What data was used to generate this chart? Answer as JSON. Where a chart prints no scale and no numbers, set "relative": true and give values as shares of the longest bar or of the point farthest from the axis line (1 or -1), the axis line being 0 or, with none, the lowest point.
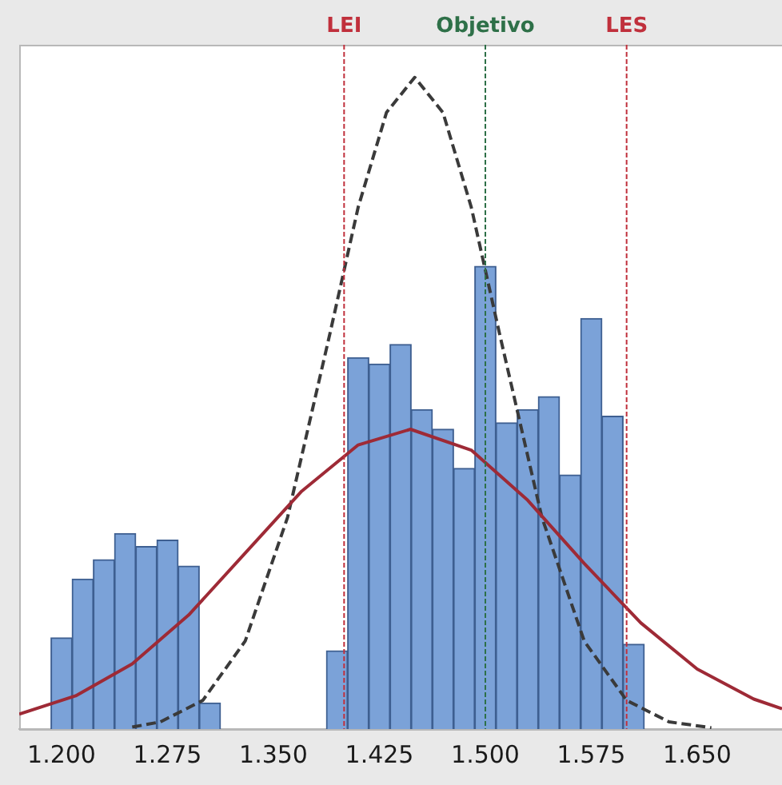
{
  "chart_data": {
    "type": "histogram",
    "relative": true,
    "color": "#7ba2d8",
    "bins": [
      1.1925,
      1.2075,
      1.2225,
      1.2375,
      1.2525,
      1.2675,
      1.2825,
      1.2975,
      1.3125,
      1.3275,
      1.3425,
      1.3575,
      1.3725,
      1.3875,
      1.4025,
      1.4175,
      1.4325,
      1.4475,
      1.4625,
      1.4775,
      1.4925,
      1.5075,
      1.5225,
      1.5375,
      1.5525,
      1.5675,
      1.5825,
      1.5975,
      1.6125
    ],
    "values": [
      0.14,
      0.23,
      0.26,
      0.3,
      0.28,
      0.29,
      0.25,
      0.04,
      0,
      0,
      0,
      0,
      0,
      0.12,
      0.57,
      0.56,
      0.59,
      0.49,
      0.46,
      0.4,
      0.71,
      0.47,
      0.49,
      0.51,
      0.39,
      0.63,
      0.48,
      0.13
    ],
    "series": [
      {
        "type": "line",
        "color": "#9e2a36",
        "line_style": "solid",
        "x": [
          1.17,
          1.21,
          1.25,
          1.29,
          1.33,
          1.37,
          1.41,
          1.447,
          1.49,
          1.53,
          1.57,
          1.61,
          1.65,
          1.69,
          1.71
        ],
        "values": [
          0.023,
          0.051,
          0.1,
          0.175,
          0.27,
          0.365,
          0.436,
          0.46,
          0.428,
          0.351,
          0.254,
          0.163,
          0.092,
          0.046,
          0.031
        ]
      },
      {
        "type": "line",
        "color": "#3a3a3a",
        "line_style": "dashed",
        "x": [
          1.25,
          1.27,
          1.3,
          1.33,
          1.36,
          1.39,
          1.41,
          1.43,
          1.45,
          1.47,
          1.49,
          1.51,
          1.54,
          1.57,
          1.6,
          1.63,
          1.66
        ],
        "values": [
          0.003,
          0.011,
          0.044,
          0.135,
          0.325,
          0.607,
          0.801,
          0.946,
          1,
          0.946,
          0.801,
          0.607,
          0.325,
          0.135,
          0.044,
          0.011,
          0.002
        ]
      }
    ],
    "xlim": [
      1.17,
      1.71
    ],
    "xticks": [
      {
        "value": 1.2,
        "label": "1.200"
      },
      {
        "value": 1.275,
        "label": "1.275"
      },
      {
        "value": 1.35,
        "label": "1.350"
      },
      {
        "value": 1.425,
        "label": "1.425"
      },
      {
        "value": 1.5,
        "label": "1.500"
      },
      {
        "value": 1.575,
        "label": "1.575"
      },
      {
        "value": 1.65,
        "label": "1.650"
      }
    ],
    "ref_lines": [
      {
        "axis": "x",
        "value": 1.4,
        "label": "LEI",
        "color": "#c0303c",
        "line_style": "dashed"
      },
      {
        "axis": "x",
        "value": 1.5,
        "label": "Objetivo",
        "color": "#2e7048",
        "line_style": "dashed"
      },
      {
        "axis": "x",
        "value": 1.6,
        "label": "LES",
        "color": "#c0303c",
        "line_style": "dashed"
      }
    ],
    "marker": "none",
    "tick_labels": "x",
    "grid": false,
    "legend": false
  }
}
